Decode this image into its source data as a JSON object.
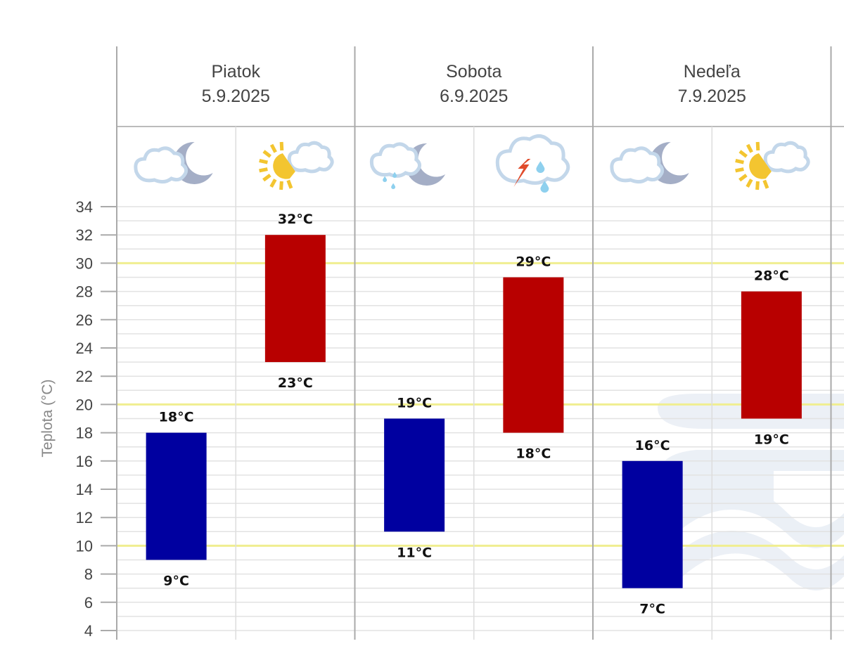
{
  "chart_data": {
    "type": "bar",
    "subtype": "floating-range",
    "ylabel": "Teplota (°C)",
    "ylim": [
      4,
      34
    ],
    "yticks": [
      4,
      6,
      8,
      10,
      12,
      14,
      16,
      18,
      20,
      22,
      24,
      26,
      28,
      30,
      32,
      34
    ],
    "grid": true,
    "highlight_lines": [
      10,
      20,
      30
    ],
    "unit": "°C",
    "colors": {
      "night": "#0000a0",
      "day": "#b80000",
      "highlight": "#f0ee90",
      "grid": "#e2e2e2",
      "axis": "#aaaaaa"
    },
    "days": [
      {
        "name": "Piatok",
        "date": "5.9.2025",
        "night": {
          "min": 9,
          "max": 18,
          "icon": "cloud-moon-icon",
          "min_label": "9°C",
          "max_label": "18°C"
        },
        "day": {
          "min": 23,
          "max": 32,
          "icon": "sun-cloud-icon",
          "min_label": "23°C",
          "max_label": "32°C"
        }
      },
      {
        "name": "Sobota",
        "date": "6.9.2025",
        "night": {
          "min": 11,
          "max": 19,
          "icon": "cloud-moon-rain-icon",
          "min_label": "11°C",
          "max_label": "19°C"
        },
        "day": {
          "min": 18,
          "max": 29,
          "icon": "thunderstorm-rain-icon",
          "min_label": "18°C",
          "max_label": "29°C"
        }
      },
      {
        "name": "Nedeľa",
        "date": "7.9.2025",
        "night": {
          "min": 7,
          "max": 16,
          "icon": "cloud-moon-icon",
          "min_label": "7°C",
          "max_label": "16°C"
        },
        "day": {
          "min": 19,
          "max": 28,
          "icon": "sun-cloud-icon",
          "min_label": "19°C",
          "max_label": "28°C"
        }
      }
    ]
  }
}
